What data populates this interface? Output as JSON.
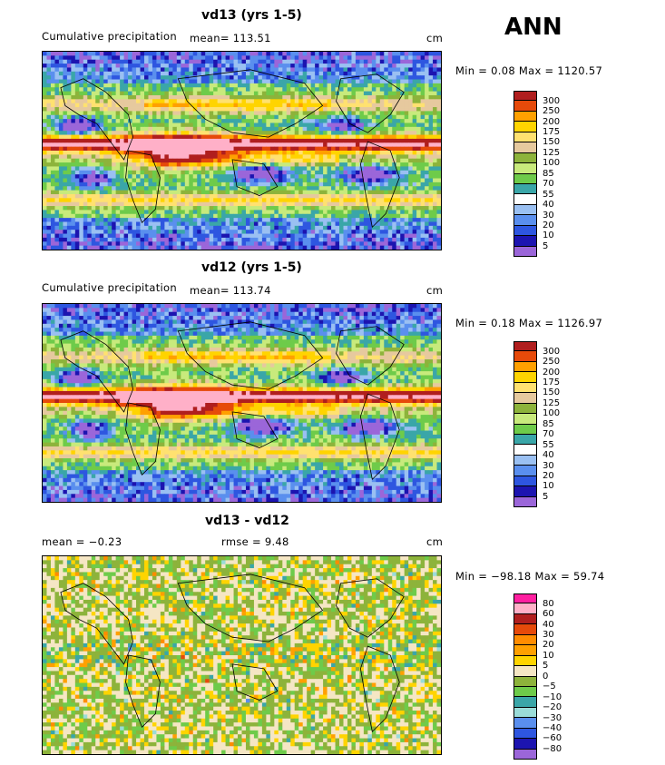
{
  "header": {
    "season": "ANN"
  },
  "colors": {
    "panel_levels": [
      "#9b66d9",
      "#1c14b0",
      "#2e56e0",
      "#5a8fee",
      "#9ac0f2",
      "#ffffff",
      "#3aa6a8",
      "#6ecb4a",
      "#c8ea7c",
      "#8db33b",
      "#e6c99e",
      "#ffe170",
      "#ffd400",
      "#ffa000",
      "#e64a0a",
      "#b01e1e",
      "#ffb0c8",
      "#ff1fa0"
    ],
    "diff_levels": [
      "#9b66d9",
      "#1c14b0",
      "#2e56e0",
      "#5a8fee",
      "#9adcd8",
      "#3aa6a8",
      "#6ecb4a",
      "#8db33b",
      "#f5e6c4",
      "#ffd400",
      "#ffa000",
      "#ff8c00",
      "#e64a0a",
      "#b01e1e",
      "#ffb0c8",
      "#ff1fa0"
    ]
  },
  "chart_data": [
    {
      "type": "heatmap",
      "title": "vd13 (yrs 1-5)",
      "subtitle": "Cumulative precipitation",
      "mean_label": "mean=  113.51",
      "units": "cm",
      "minmax": "Min =    0.08 Max = 1120.57",
      "levels": [
        "300",
        "250",
        "200",
        "175",
        "150",
        "125",
        "100",
        "85",
        "70",
        "55",
        "40",
        "30",
        "20",
        "10",
        "5"
      ],
      "min": 0.08,
      "max": 1120.57,
      "mean": 113.51
    },
    {
      "type": "heatmap",
      "title": "vd12 (yrs 1-5)",
      "subtitle": "Cumulative precipitation",
      "mean_label": "mean=  113.74",
      "units": "cm",
      "minmax": "Min =    0.18 Max = 1126.97",
      "levels": [
        "300",
        "250",
        "200",
        "175",
        "150",
        "125",
        "100",
        "85",
        "70",
        "55",
        "40",
        "30",
        "20",
        "10",
        "5"
      ],
      "min": 0.18,
      "max": 1126.97,
      "mean": 113.74
    },
    {
      "type": "heatmap",
      "title": "vd13 - vd12",
      "mean_label": "mean =   −0.23",
      "rmse_label": "rmse =    9.48",
      "units": "cm",
      "minmax": "Min = −98.18 Max =   59.74",
      "levels": [
        "80",
        "60",
        "40",
        "30",
        "20",
        "10",
        "5",
        "0",
        "−5",
        "−10",
        "−20",
        "−30",
        "−40",
        "−60",
        "−80"
      ],
      "min": -98.18,
      "max": 59.74,
      "mean": -0.23,
      "rmse": 9.48
    }
  ]
}
